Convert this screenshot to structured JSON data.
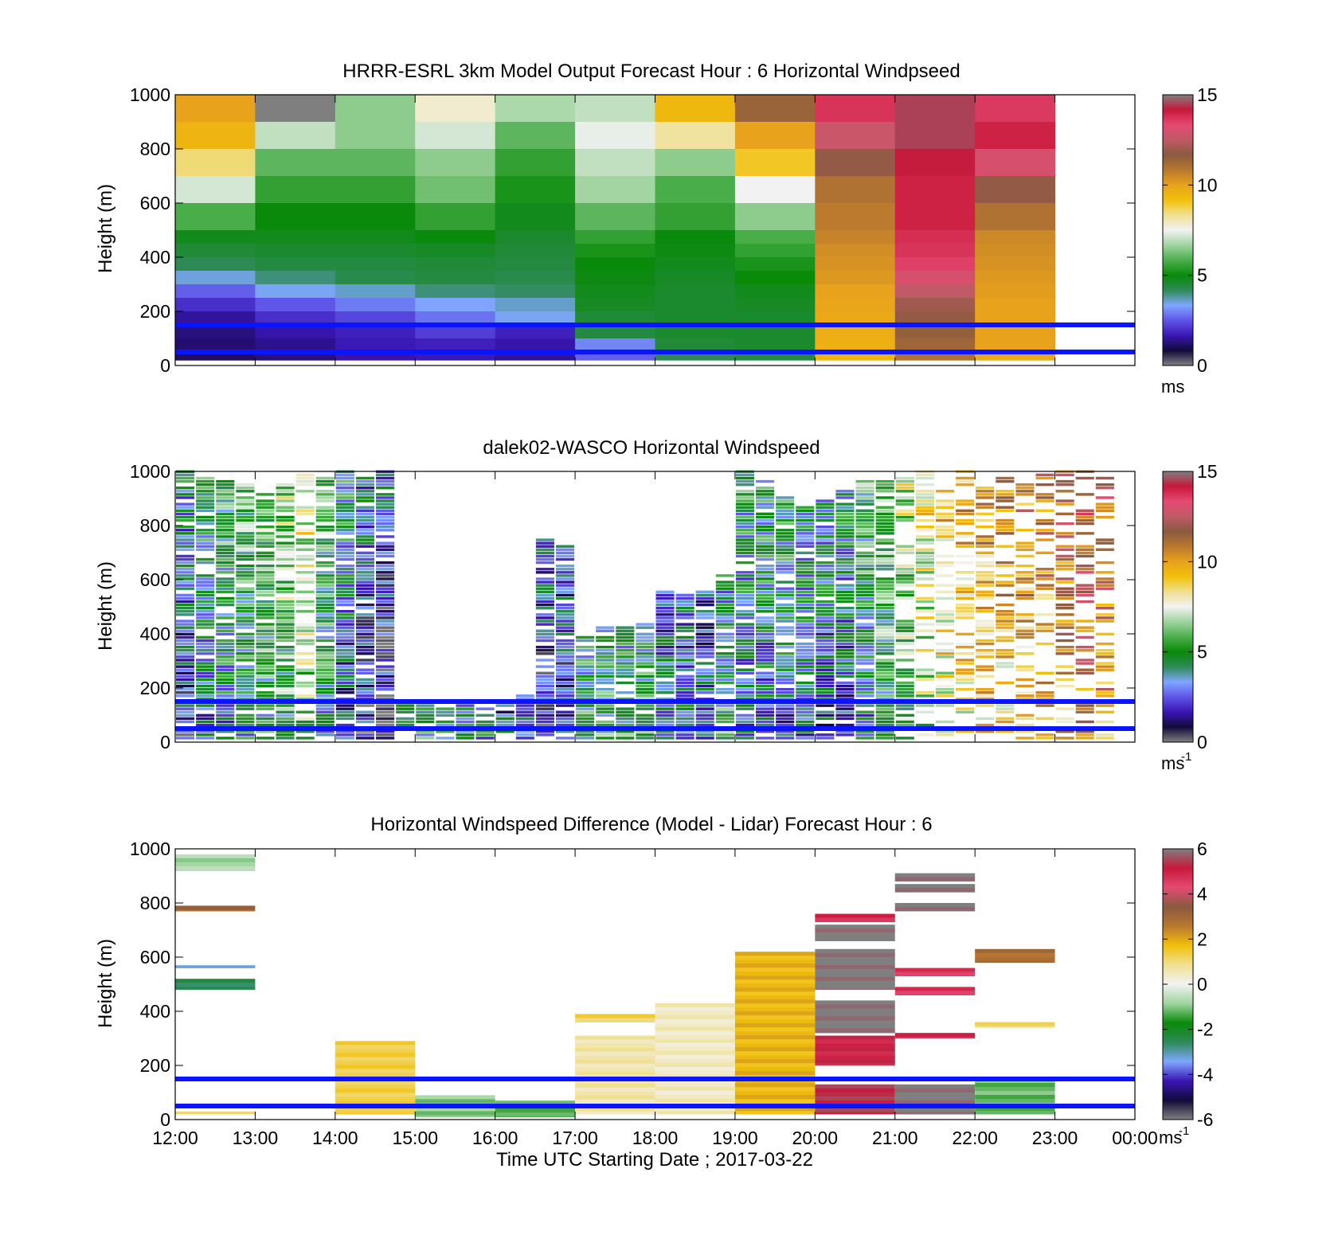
{
  "colors": {
    "plot_border": "#000000",
    "reference_lines": "#0a14ff",
    "colormap_speed": [
      "#7f7f7f",
      "#120a3a",
      "#3a16b4",
      "#5f55e8",
      "#7fa7ff",
      "#2e8a57",
      "#0a8a0a",
      "#4cae4c",
      "#9fd49f",
      "#f2f2f2",
      "#f0e090",
      "#f2c00a",
      "#e8a21c",
      "#b9782e",
      "#8a5a40",
      "#c05a66",
      "#e44a72",
      "#c8183a",
      "#7f7f7f"
    ],
    "colormap_difference": [
      "#7f7f7f",
      "#120a3a",
      "#3a16b4",
      "#7fa7ff",
      "#2e8a57",
      "#0a8a0a",
      "#9fd49f",
      "#f2f2f2",
      "#f0e090",
      "#f2c00a",
      "#b9782e",
      "#8a5a40",
      "#e44a72",
      "#c8183a",
      "#7f7f7f"
    ]
  },
  "xaxis": {
    "ticks": [
      "12:00",
      "13:00",
      "14:00",
      "15:00",
      "16:00",
      "17:00",
      "18:00",
      "19:00",
      "20:00",
      "21:00",
      "22:00",
      "23:00",
      "00:00"
    ],
    "label": "Time UTC  Starting Date ; 2017-03-22"
  },
  "reference_lines_m": [
    150,
    50
  ],
  "chart_data": [
    {
      "type": "heatmap",
      "title": "HRRR-ESRL 3km Model Output   Forecast Hour : 6 Horizontal Windpseed",
      "ylabel": "Height (m)",
      "ylim": [
        0,
        1000
      ],
      "yticks": [
        0,
        200,
        400,
        600,
        800,
        1000
      ],
      "colorbar": {
        "range": [
          0,
          15
        ],
        "ticks": [
          0,
          5,
          10,
          15
        ],
        "unit": "ms",
        "unit_sup": ""
      },
      "x_hours": [
        "12:00",
        "13:00",
        "14:00",
        "15:00",
        "16:00",
        "17:00",
        "18:00",
        "19:00",
        "20:00",
        "21:00",
        "22:00"
      ],
      "y_heights_m": [
        1000,
        900,
        800,
        700,
        600,
        500,
        450,
        400,
        350,
        300,
        250,
        200,
        150,
        100,
        50
      ],
      "values_ms": [
        [
          10.0,
          15.0,
          6.5,
          7.8,
          6.8,
          7.0,
          9.4,
          11.4,
          13.7,
          14.5,
          13.6
        ],
        [
          9.5,
          7.0,
          6.5,
          7.2,
          6.0,
          7.4,
          8.2,
          10.0,
          12.7,
          14.5,
          14.0
        ],
        [
          8.5,
          6.0,
          6.0,
          6.5,
          5.5,
          7.0,
          6.5,
          9.0,
          11.8,
          14.2,
          13.0
        ],
        [
          7.2,
          5.5,
          5.5,
          6.2,
          5.2,
          6.7,
          5.8,
          7.5,
          11.0,
          14.0,
          11.8
        ],
        [
          5.8,
          5.0,
          5.0,
          5.5,
          4.8,
          6.0,
          5.5,
          6.5,
          10.8,
          14.0,
          11.0
        ],
        [
          4.8,
          4.8,
          4.8,
          5.0,
          4.6,
          5.5,
          5.0,
          5.8,
          10.6,
          13.8,
          10.5
        ],
        [
          4.5,
          4.6,
          4.6,
          4.7,
          4.5,
          5.2,
          4.9,
          5.5,
          10.4,
          13.7,
          10.4
        ],
        [
          4.2,
          4.4,
          4.4,
          4.5,
          4.4,
          5.0,
          4.8,
          5.2,
          10.3,
          13.5,
          10.3
        ],
        [
          3.5,
          4.0,
          4.3,
          4.4,
          4.3,
          4.9,
          4.7,
          5.0,
          10.2,
          13.0,
          10.2
        ],
        [
          2.6,
          3.4,
          3.6,
          4.0,
          4.1,
          4.8,
          4.6,
          4.8,
          10.0,
          12.5,
          10.1
        ],
        [
          2.0,
          2.5,
          2.9,
          3.3,
          3.6,
          4.7,
          4.6,
          4.7,
          9.9,
          12.0,
          10.0
        ],
        [
          1.5,
          2.0,
          2.3,
          2.8,
          3.4,
          4.5,
          4.6,
          4.6,
          9.8,
          11.8,
          10.0
        ],
        [
          1.3,
          1.6,
          1.8,
          2.2,
          1.8,
          4.4,
          4.6,
          4.6,
          9.7,
          11.5,
          10.0
        ],
        [
          1.2,
          1.4,
          1.7,
          1.8,
          1.6,
          3.0,
          4.5,
          4.6,
          9.6,
          11.3,
          10.0
        ],
        [
          1.1,
          1.3,
          1.6,
          1.7,
          1.5,
          2.6,
          4.2,
          4.4,
          9.5,
          11.0,
          9.8
        ]
      ]
    },
    {
      "type": "heatmap",
      "title": "dalek02-WASCO  Horizontal Windspeed",
      "ylabel": "Height (m)",
      "ylim": [
        0,
        1000
      ],
      "yticks": [
        0,
        200,
        400,
        600,
        800,
        1000
      ],
      "colorbar": {
        "range": [
          0,
          15
        ],
        "ticks": [
          0,
          5,
          10,
          15
        ],
        "unit": "ms",
        "unit_sup": "-1"
      },
      "top_height_m": {
        "12:00": 1000,
        "12:15": 990,
        "12:30": 960,
        "12:45": 970,
        "13:00": 920,
        "13:15": 950,
        "13:30": 990,
        "13:45": 1000,
        "14:00": 1000,
        "14:15": 980,
        "14:30": 1000,
        "14:45": 140,
        "15:00": 140,
        "15:15": 140,
        "15:30": 140,
        "15:45": 130,
        "16:00": 150,
        "16:15": 175,
        "16:30": 750,
        "16:45": 720,
        "17:00": 400,
        "17:15": 420,
        "17:30": 420,
        "17:45": 440,
        "18:00": 560,
        "18:15": 550,
        "18:30": 560,
        "18:45": 620,
        "19:00": 1000,
        "19:15": 960,
        "19:30": 900,
        "19:45": 870,
        "20:00": 890,
        "20:15": 940,
        "20:30": 990,
        "20:45": 960,
        "21:00": 990,
        "21:15": 1000,
        "21:30": 940,
        "21:45": 1000,
        "22:00": 960,
        "22:15": 990,
        "22:30": 950,
        "22:45": 990,
        "23:00": 1000,
        "23:15": 1000,
        "23:30": 1000
      },
      "column_mean_ms": {
        "12:00": 4.0,
        "12:15": 5.0,
        "12:30": 5.5,
        "12:45": 6.0,
        "13:00": 6.5,
        "13:15": 7.0,
        "13:30": 8.0,
        "13:45": 6.0,
        "14:00": 4.5,
        "14:15": 3.5,
        "14:30": 3.0,
        "14:45": 4.2,
        "15:00": 4.0,
        "15:15": 4.0,
        "15:30": 3.8,
        "15:45": 3.2,
        "16:00": 2.5,
        "16:15": 3.0,
        "16:30": 3.5,
        "16:45": 3.8,
        "17:00": 4.5,
        "17:15": 4.6,
        "17:30": 4.6,
        "17:45": 4.7,
        "18:00": 3.5,
        "18:15": 3.2,
        "18:30": 3.0,
        "18:45": 4.5,
        "19:00": 4.8,
        "19:15": 5.0,
        "19:30": 5.0,
        "19:45": 4.8,
        "20:00": 4.6,
        "20:15": 4.5,
        "20:30": 5.5,
        "20:45": 6.5,
        "21:00": 7.5,
        "21:15": 8.5,
        "21:30": 9.5,
        "21:45": 10.0,
        "22:00": 10.5,
        "22:15": 10.5,
        "22:30": 10.8,
        "22:45": 11.0,
        "23:00": 11.5,
        "23:15": 12.5,
        "23:30": 12.0
      }
    },
    {
      "type": "heatmap",
      "title": "Horizontal Windspeed Difference (Model - Lidar) Forecast Hour : 6",
      "ylabel": "Height (m)",
      "xlabel": "Time UTC  Starting Date ; 2017-03-22",
      "ylim": [
        0,
        1000
      ],
      "yticks": [
        0,
        200,
        400,
        600,
        800,
        1000
      ],
      "colorbar": {
        "range": [
          -6,
          6
        ],
        "ticks": [
          -6,
          -4,
          -2,
          0,
          2,
          4,
          6
        ],
        "unit": "ms",
        "unit_sup": "-1"
      },
      "bands": [
        {
          "hour": "12:00",
          "from_m": 920,
          "to_m": 980,
          "value_ms": -0.8
        },
        {
          "hour": "12:00",
          "from_m": 770,
          "to_m": 790,
          "value_ms": 3.0
        },
        {
          "hour": "12:00",
          "from_m": 560,
          "to_m": 570,
          "value_ms": -3.5
        },
        {
          "hour": "12:00",
          "from_m": 480,
          "to_m": 520,
          "value_ms": -2.5
        },
        {
          "hour": "12:00",
          "from_m": 20,
          "to_m": 30,
          "value_ms": 0.8
        },
        {
          "hour": "14:00",
          "from_m": 20,
          "to_m": 290,
          "value_ms": 1.3
        },
        {
          "hour": "15:00",
          "from_m": 10,
          "to_m": 90,
          "value_ms": -1.0
        },
        {
          "hour": "16:00",
          "from_m": 10,
          "to_m": 70,
          "value_ms": -1.4
        },
        {
          "hour": "17:00",
          "from_m": 360,
          "to_m": 390,
          "value_ms": 1.2
        },
        {
          "hour": "17:00",
          "from_m": 20,
          "to_m": 310,
          "value_ms": 0.6
        },
        {
          "hour": "18:00",
          "from_m": 20,
          "to_m": 430,
          "value_ms": 0.4
        },
        {
          "hour": "19:00",
          "from_m": 20,
          "to_m": 620,
          "value_ms": 1.8
        },
        {
          "hour": "20:00",
          "from_m": 730,
          "to_m": 760,
          "value_ms": 4.8
        },
        {
          "hour": "20:00",
          "from_m": 660,
          "to_m": 720,
          "value_ms": 6.0
        },
        {
          "hour": "20:00",
          "from_m": 480,
          "to_m": 630,
          "value_ms": 6.0
        },
        {
          "hour": "20:00",
          "from_m": 320,
          "to_m": 440,
          "value_ms": 6.0
        },
        {
          "hour": "20:00",
          "from_m": 200,
          "to_m": 310,
          "value_ms": 5.0
        },
        {
          "hour": "20:00",
          "from_m": 20,
          "to_m": 130,
          "value_ms": 5.3
        },
        {
          "hour": "21:00",
          "from_m": 880,
          "to_m": 910,
          "value_ms": 6.0
        },
        {
          "hour": "21:00",
          "from_m": 840,
          "to_m": 870,
          "value_ms": 6.0
        },
        {
          "hour": "21:00",
          "from_m": 770,
          "to_m": 800,
          "value_ms": 6.0
        },
        {
          "hour": "21:00",
          "from_m": 530,
          "to_m": 560,
          "value_ms": 4.6
        },
        {
          "hour": "21:00",
          "from_m": 460,
          "to_m": 490,
          "value_ms": 4.6
        },
        {
          "hour": "21:00",
          "from_m": 300,
          "to_m": 320,
          "value_ms": 4.8
        },
        {
          "hour": "21:00",
          "from_m": 20,
          "to_m": 130,
          "value_ms": 6.0
        },
        {
          "hour": "22:00",
          "from_m": 580,
          "to_m": 630,
          "value_ms": 2.8
        },
        {
          "hour": "22:00",
          "from_m": 340,
          "to_m": 360,
          "value_ms": 1.0
        },
        {
          "hour": "22:00",
          "from_m": 20,
          "to_m": 150,
          "value_ms": -1.2
        }
      ]
    }
  ]
}
